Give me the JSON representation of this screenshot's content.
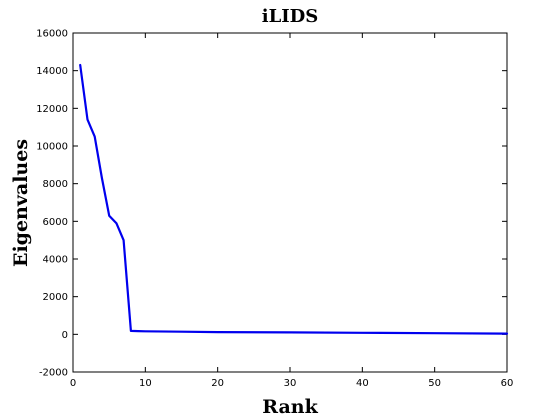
{
  "chart_data": {
    "type": "line",
    "title": "iLIDS",
    "xlabel": "Rank",
    "ylabel": "Eigenvalues",
    "xlim": [
      0,
      60
    ],
    "ylim": [
      -2000,
      16000
    ],
    "xticks": [
      0,
      10,
      20,
      30,
      40,
      50,
      60
    ],
    "yticks": [
      -2000,
      0,
      2000,
      4000,
      6000,
      8000,
      10000,
      12000,
      14000,
      16000
    ],
    "grid": false,
    "legend": "none",
    "line_color": "#0000ee",
    "series": [
      {
        "x": [
          1,
          2,
          3,
          4,
          5,
          6,
          7,
          8,
          9,
          10,
          15,
          20,
          30,
          40,
          50,
          60
        ],
        "y": [
          14300,
          11400,
          10500,
          8300,
          6300,
          5900,
          5000,
          180,
          170,
          160,
          140,
          120,
          100,
          80,
          60,
          40
        ]
      }
    ]
  }
}
